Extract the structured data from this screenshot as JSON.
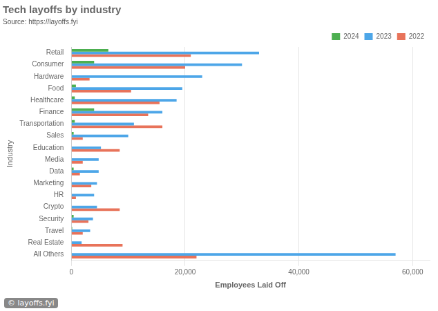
{
  "chart_data": {
    "type": "bar",
    "orientation": "horizontal",
    "title": "Tech layoffs by industry",
    "subtitle": "Source: https://layoffs.fyi",
    "annotations": [
      "© layoffs.fyi"
    ],
    "x_label": "Employees Laid Off",
    "y_label": "Industry",
    "categories": [
      "Retail",
      "Consumer",
      "Hardware",
      "Food",
      "Healthcare",
      "Finance",
      "Transportation",
      "Sales",
      "Education",
      "Media",
      "Data",
      "Marketing",
      "HR",
      "Crypto",
      "Security",
      "Travel",
      "Real Estate",
      "All Others"
    ],
    "series": [
      {
        "name": "2024",
        "color": "#4CAF50",
        "values": [
          6500,
          4000,
          0,
          800,
          600,
          4000,
          600,
          400,
          0,
          0,
          400,
          0,
          0,
          0,
          400,
          150,
          0,
          0
        ]
      },
      {
        "name": "2023",
        "color": "#4da6e8",
        "values": [
          33000,
          30000,
          23000,
          19500,
          18500,
          16000,
          11000,
          10000,
          5200,
          4800,
          4800,
          4500,
          4000,
          4500,
          3800,
          3300,
          1800,
          57000
        ]
      },
      {
        "name": "2022",
        "color": "#e8735a",
        "values": [
          21000,
          20000,
          3200,
          10500,
          15500,
          13500,
          16000,
          2000,
          8500,
          2000,
          1500,
          3500,
          800,
          8500,
          3000,
          2000,
          9000,
          22000
        ]
      }
    ],
    "xlim": [
      0,
      63000
    ],
    "xticks": [
      0,
      {
        "value": 20000,
        "label": "20,000"
      },
      {
        "value": 40000,
        "label": "40,000"
      },
      {
        "value": 60000,
        "label": "60,000"
      }
    ],
    "grid": "x",
    "legend": "upper right"
  }
}
